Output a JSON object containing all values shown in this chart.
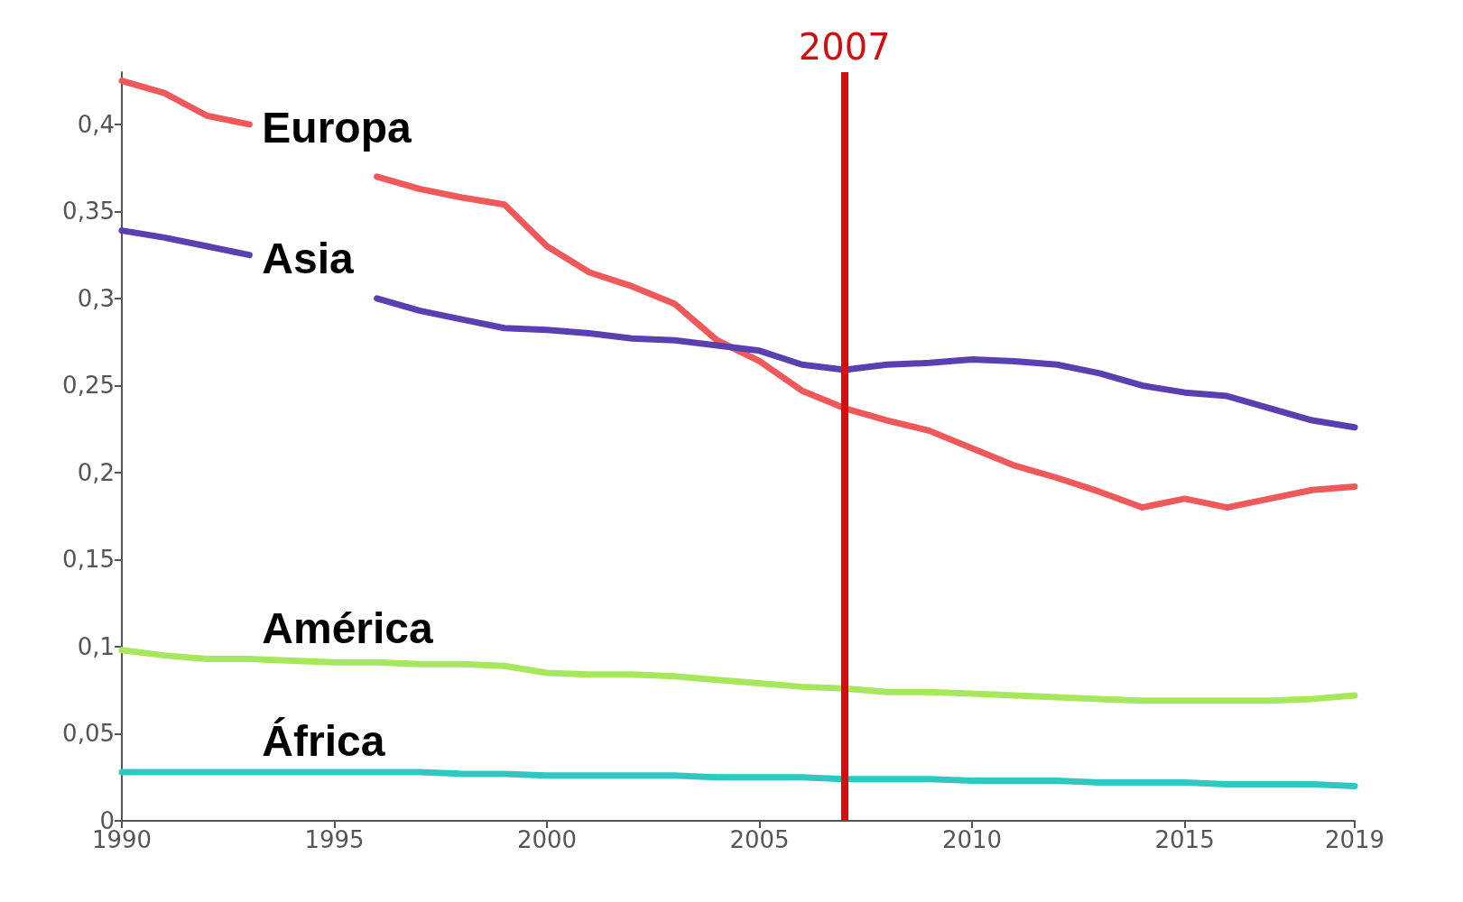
{
  "chart_data": {
    "type": "line",
    "x": [
      1990,
      1991,
      1992,
      1993,
      1994,
      1995,
      1996,
      1997,
      1998,
      1999,
      2000,
      2001,
      2002,
      2003,
      2004,
      2005,
      2006,
      2007,
      2008,
      2009,
      2010,
      2011,
      2012,
      2013,
      2014,
      2015,
      2016,
      2017,
      2018,
      2019
    ],
    "series": [
      {
        "name": "Europa",
        "color": "#f0585a",
        "values": [
          0.425,
          0.418,
          0.405,
          0.4,
          null,
          null,
          0.37,
          0.363,
          0.358,
          0.354,
          0.33,
          0.315,
          0.307,
          0.297,
          0.276,
          0.264,
          0.247,
          0.237,
          0.23,
          0.224,
          0.214,
          0.204,
          0.197,
          0.189,
          0.18,
          0.185,
          0.18,
          0.185,
          0.19,
          0.192
        ]
      },
      {
        "name": "Asia",
        "color": "#5a3fb0",
        "values": [
          0.339,
          0.335,
          0.33,
          0.325,
          null,
          null,
          0.3,
          0.293,
          0.288,
          0.283,
          0.282,
          0.28,
          0.277,
          0.276,
          0.273,
          0.27,
          0.262,
          0.259,
          0.262,
          0.263,
          0.265,
          0.264,
          0.262,
          0.257,
          0.25,
          0.246,
          0.244,
          0.237,
          0.23,
          0.226
        ]
      },
      {
        "name": "América",
        "color": "#a6e85a",
        "values": [
          0.098,
          0.095,
          0.093,
          0.093,
          0.092,
          0.091,
          0.091,
          0.09,
          0.09,
          0.089,
          0.085,
          0.084,
          0.084,
          0.083,
          0.081,
          0.079,
          0.077,
          0.076,
          0.074,
          0.074,
          0.073,
          0.072,
          0.071,
          0.07,
          0.069,
          0.069,
          0.069,
          0.069,
          0.07,
          0.072
        ]
      },
      {
        "name": "África",
        "color": "#2ec8c0",
        "values": [
          0.028,
          0.028,
          0.028,
          0.028,
          0.028,
          0.028,
          0.028,
          0.028,
          0.027,
          0.027,
          0.026,
          0.026,
          0.026,
          0.026,
          0.025,
          0.025,
          0.025,
          0.024,
          0.024,
          0.024,
          0.023,
          0.023,
          0.023,
          0.022,
          0.022,
          0.022,
          0.021,
          0.021,
          0.021,
          0.02
        ]
      }
    ],
    "xlim": [
      1990,
      2019
    ],
    "xticks": [
      1990,
      1995,
      2000,
      2005,
      2010,
      2015,
      2019
    ],
    "ylim": [
      0,
      0.43
    ],
    "yticks": [
      0,
      {
        "value": 0.05,
        "label": "0,05"
      },
      {
        "value": 0.1,
        "label": "0,1"
      },
      {
        "value": 0.15,
        "label": "0,15"
      },
      {
        "value": 0.2,
        "label": "0,2"
      },
      {
        "value": 0.25,
        "label": "0,25"
      },
      {
        "value": 0.3,
        "label": "0,3"
      },
      {
        "value": 0.35,
        "label": "0,35"
      },
      {
        "value": 0.4,
        "label": "0,4"
      }
    ],
    "grid": false,
    "legend": false,
    "marker": "none",
    "line_style": "solid",
    "ref_lines": [
      {
        "axis": "x",
        "value": 2007,
        "label": "2007",
        "color": "#d01010"
      }
    ]
  }
}
